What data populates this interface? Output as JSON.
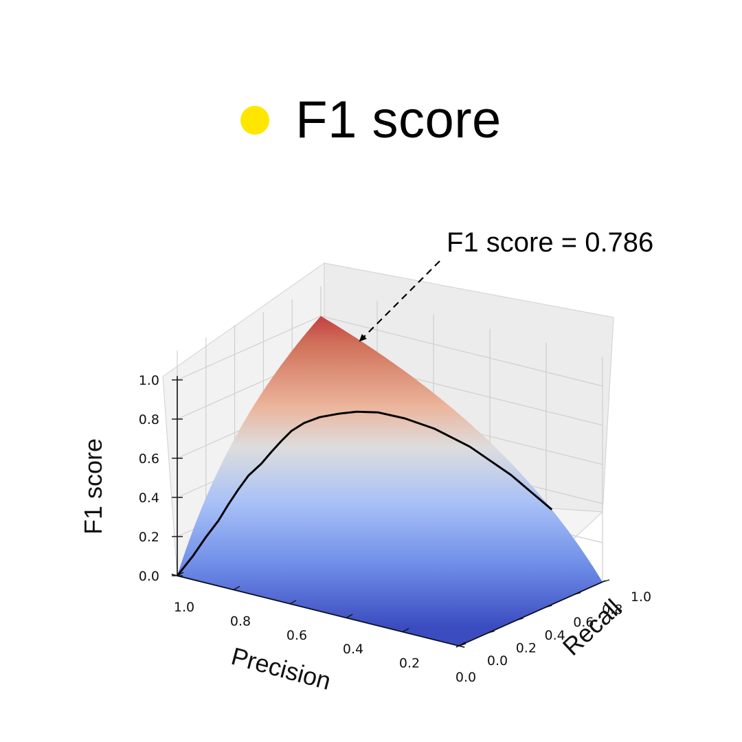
{
  "header": {
    "title": "F1 score",
    "dot_color": "#ffe600"
  },
  "chart_data": {
    "type": "surface3d",
    "title": "F1 score",
    "xlabel": "Precision",
    "ylabel": "Recall",
    "zlabel": "F1 score",
    "xlim": [
      0,
      1
    ],
    "ylim": [
      0,
      1
    ],
    "zlim": [
      0,
      1
    ],
    "x_ticks": [
      "1.0",
      "0.8",
      "0.6",
      "0.4",
      "0.2",
      "0.0"
    ],
    "y_ticks": [
      "0.0",
      "0.2",
      "0.4",
      "0.6",
      "0.8",
      "1.0"
    ],
    "z_ticks": [
      "0.0",
      "0.2",
      "0.4",
      "0.6",
      "0.8",
      "1.0"
    ],
    "surface_formula": "2PR/(P+R)",
    "colormap": "coolwarm",
    "colormap_low": "#3b4cc0",
    "colormap_mid": "#dddddd",
    "colormap_high": "#b40426",
    "grid": true,
    "pr_curve": {
      "color": "#000000",
      "recall": [
        0.0,
        0.05,
        0.1,
        0.15,
        0.2,
        0.25,
        0.3,
        0.35,
        0.4,
        0.45,
        0.5,
        0.55,
        0.6,
        0.65,
        0.7,
        0.75,
        0.8,
        0.85,
        0.9,
        0.95,
        1.0
      ],
      "precision": [
        1.0,
        0.97,
        0.95,
        0.93,
        0.92,
        0.91,
        0.9,
        0.88,
        0.87,
        0.86,
        0.85,
        0.83,
        0.8,
        0.76,
        0.72,
        0.67,
        0.6,
        0.52,
        0.42,
        0.3,
        0.18
      ]
    },
    "annotation": {
      "text": "F1 score = 0.786",
      "value": 0.786
    }
  }
}
